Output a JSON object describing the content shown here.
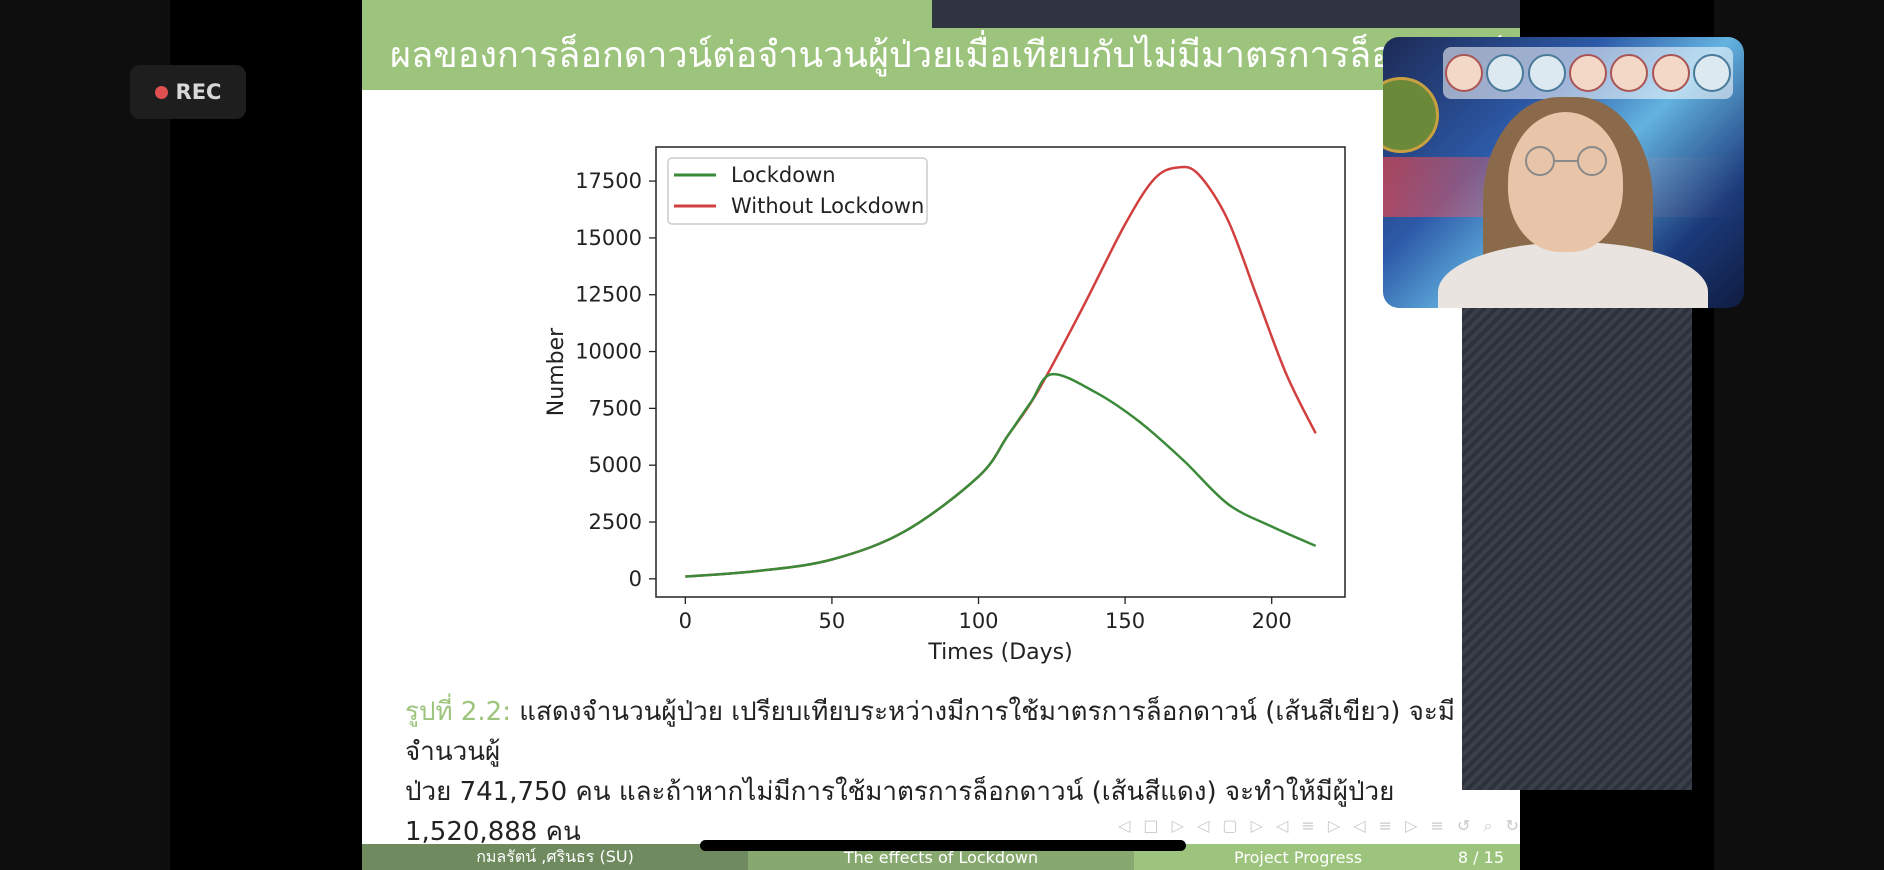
{
  "recording": {
    "label": "REC"
  },
  "slide": {
    "title": "ผลของการล็อกดาวน์ต่อจำนวนผู้ป่วยเมื่อเทียบกับไม่มีมาตรการล็อกดาวน์",
    "caption_prefix": "รูปที่ 2.2:",
    "caption_line1": " แสดงจำนวนผู้ป่วย เปรียบเทียบระหว่างมีการใช้มาตรการล็อกดาวน์ (เส้นสีเขียว) จะมีจำนวนผู้",
    "caption_line2": "ป่วย 741,750 คน และถ้าหากไม่มีการใช้มาตรการล็อกดาวน์ (เส้นสีแดง) จะทำให้มีผู้ป่วย 1,520,888 คน"
  },
  "footer": {
    "author": "กมลรัตน์ ,ศรินธร (SU)",
    "topic": "The effects of Lockdown",
    "section": "Project Progress",
    "page": "8 / 15"
  },
  "colors": {
    "header": "#9dc47c",
    "lockdown": "#3a8a3a",
    "without": "#d23f3f"
  },
  "chart_data": {
    "type": "line",
    "xlabel": "Times (Days)",
    "ylabel": "Number",
    "xlim": [
      -10,
      225
    ],
    "ylim": [
      -800,
      19000
    ],
    "xticks": [
      0,
      50,
      100,
      150,
      200
    ],
    "yticks": [
      0,
      2500,
      5000,
      7500,
      10000,
      12500,
      15000,
      17500
    ],
    "legend_position": "top-left",
    "series": [
      {
        "name": "Lockdown",
        "color": "#3a8a3a",
        "x": [
          0,
          25,
          50,
          75,
          100,
          110,
          118,
          125,
          140,
          155,
          170,
          185,
          200,
          215
        ],
        "y": [
          100,
          350,
          850,
          2100,
          4500,
          6300,
          7800,
          9000,
          8200,
          6900,
          5200,
          3300,
          2300,
          1450
        ]
      },
      {
        "name": "Without Lockdown",
        "color": "#d23f3f",
        "x": [
          0,
          25,
          50,
          75,
          100,
          110,
          120,
          135,
          150,
          160,
          168,
          175,
          185,
          195,
          205,
          215
        ],
        "y": [
          100,
          350,
          850,
          2100,
          4500,
          6300,
          8200,
          11800,
          15600,
          17600,
          18100,
          17800,
          15800,
          12400,
          9000,
          6400
        ]
      }
    ]
  }
}
